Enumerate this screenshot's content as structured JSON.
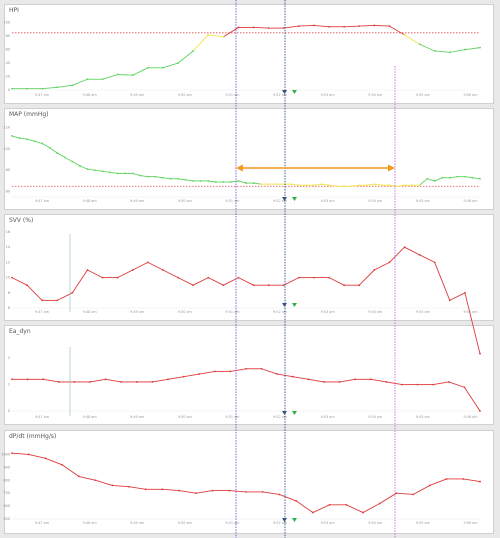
{
  "colors": {
    "red": "#e03a3a",
    "green": "#5fd45f",
    "yellow": "#f3e34a",
    "threshold": "#e24a4a",
    "orange": "#f39a1e",
    "purple": "#7c4fe0",
    "magenta": "#c86ad9",
    "navy": "#2f4a8f",
    "teal": "#8ab7c7",
    "marker_navy": "#35508a",
    "marker_green": "#2bb34a"
  },
  "time_ticks": [
    "9:47 am",
    "9:48 am",
    "9:49 am",
    "9:50 am",
    "9:51 am",
    "9:52 am",
    "9:53 am",
    "9:54 am",
    "9:55 am",
    "9:56 am"
  ],
  "panels": [
    {
      "id": "hpi",
      "title": "HPI"
    },
    {
      "id": "map",
      "title": "MAP (mmHg)"
    },
    {
      "id": "svv",
      "title": "SVV (%)"
    },
    {
      "id": "eadyn",
      "title": "Ea_dyn"
    },
    {
      "id": "dpdt",
      "title": "dP/dt (mmHg/s)"
    }
  ],
  "chart_data": [
    {
      "type": "line",
      "title": "HPI",
      "x": [
        0,
        1,
        2,
        3,
        4,
        5,
        6,
        7,
        8,
        9,
        10,
        11,
        12,
        13,
        14,
        15,
        16,
        17,
        18,
        19,
        20,
        21,
        22,
        23,
        24,
        25,
        26,
        27,
        28,
        29,
        30,
        31
      ],
      "values": [
        2,
        2,
        2,
        4,
        7,
        16,
        16,
        23,
        22,
        33,
        33,
        40,
        58,
        82,
        79,
        93,
        93,
        92,
        92,
        95,
        96,
        94,
        94,
        95,
        96,
        95,
        82,
        68,
        58,
        56,
        60,
        63
      ],
      "ylim": [
        0,
        110
      ],
      "threshold": 85,
      "y_ticks": [
        0,
        20,
        40,
        60,
        80,
        100
      ],
      "color_rule": "hpi"
    },
    {
      "type": "line",
      "title": "MAP (mmHg)",
      "x": [
        0,
        1,
        2,
        3,
        4,
        5,
        6,
        7,
        8,
        9,
        10,
        11,
        12,
        13,
        14,
        15,
        16,
        17,
        18,
        19,
        20,
        21,
        22,
        23,
        24,
        25,
        26,
        27,
        28,
        29,
        30,
        31,
        32,
        33,
        34,
        35,
        36,
        37,
        38,
        39,
        40,
        41,
        42,
        43,
        44,
        45,
        46,
        47,
        48,
        49,
        50,
        51,
        52,
        53,
        54,
        55,
        56,
        57,
        58,
        59,
        60,
        61,
        62
      ],
      "values": [
        112,
        110,
        109,
        107,
        105,
        101,
        96,
        92,
        88,
        84,
        81,
        80,
        79,
        78,
        77,
        77,
        77,
        75,
        74,
        74,
        73,
        72,
        72,
        71,
        70,
        70,
        70,
        69,
        69,
        69,
        70,
        68,
        68,
        67,
        67,
        67,
        67,
        67,
        66,
        66,
        66,
        67,
        66,
        65,
        65,
        65,
        66,
        66,
        67,
        66,
        66,
        65,
        66,
        66,
        66,
        72,
        70,
        73,
        73,
        74,
        74,
        73,
        72
      ],
      "ylim": [
        55,
        125
      ],
      "threshold": 65,
      "y_ticks": [
        60,
        80,
        100,
        120
      ],
      "color_rule": "map"
    },
    {
      "type": "line",
      "title": "SVV (%)",
      "x": [
        0,
        1,
        2,
        3,
        4,
        5,
        6,
        7,
        8,
        9,
        10,
        11,
        12,
        13,
        14,
        15,
        16,
        17,
        18,
        19,
        20,
        21,
        22,
        23,
        24,
        25,
        26,
        27,
        28,
        29,
        30,
        31
      ],
      "values": [
        10,
        9,
        7,
        7,
        8,
        11,
        10,
        10,
        11,
        12,
        11,
        10,
        9,
        10,
        9,
        10,
        9,
        9,
        9,
        10,
        10,
        10,
        9,
        9,
        11,
        12,
        14,
        13,
        12,
        7,
        8,
        0
      ],
      "ylim": [
        6,
        16
      ],
      "y_ticks": [
        6,
        8,
        10,
        12,
        14,
        16
      ],
      "color_rule": "red"
    },
    {
      "type": "line",
      "title": "Ea_dyn",
      "x": [
        0,
        1,
        2,
        3,
        4,
        5,
        6,
        7,
        8,
        9,
        10,
        11,
        12,
        13,
        14,
        15,
        16,
        17,
        18,
        19,
        20,
        21,
        22,
        23,
        24,
        25,
        26,
        27,
        28,
        29,
        30
      ],
      "values": [
        1.2,
        1.2,
        1.2,
        1.1,
        1.1,
        1.1,
        1.2,
        1.1,
        1.1,
        1.1,
        1.2,
        1.3,
        1.4,
        1.5,
        1.5,
        1.6,
        1.6,
        1.4,
        1.3,
        1.2,
        1.1,
        1.1,
        1.2,
        1.2,
        1.1,
        1.0,
        1.0,
        1.0,
        1.1,
        0.9,
        0.0
      ],
      "ylim": [
        0,
        2.5
      ],
      "y_ticks": [
        0,
        1,
        2
      ],
      "color_rule": "red"
    },
    {
      "type": "line",
      "title": "dP/dt (mmHg/s)",
      "x": [
        0,
        1,
        2,
        3,
        4,
        5,
        6,
        7,
        8,
        9,
        10,
        11,
        12,
        13,
        14,
        15,
        16,
        17,
        18,
        19,
        20,
        21,
        22,
        23,
        24,
        25,
        26,
        27,
        28
      ],
      "values": [
        1010,
        1000,
        970,
        920,
        830,
        800,
        760,
        750,
        730,
        730,
        720,
        700,
        720,
        720,
        710,
        710,
        690,
        640,
        550,
        610,
        610,
        550,
        620,
        700,
        690,
        760,
        810,
        810,
        790
      ],
      "ylim": [
        500,
        1050
      ],
      "y_ticks": [
        500,
        600,
        700,
        800,
        900,
        1000
      ],
      "color_rule": "red"
    }
  ]
}
